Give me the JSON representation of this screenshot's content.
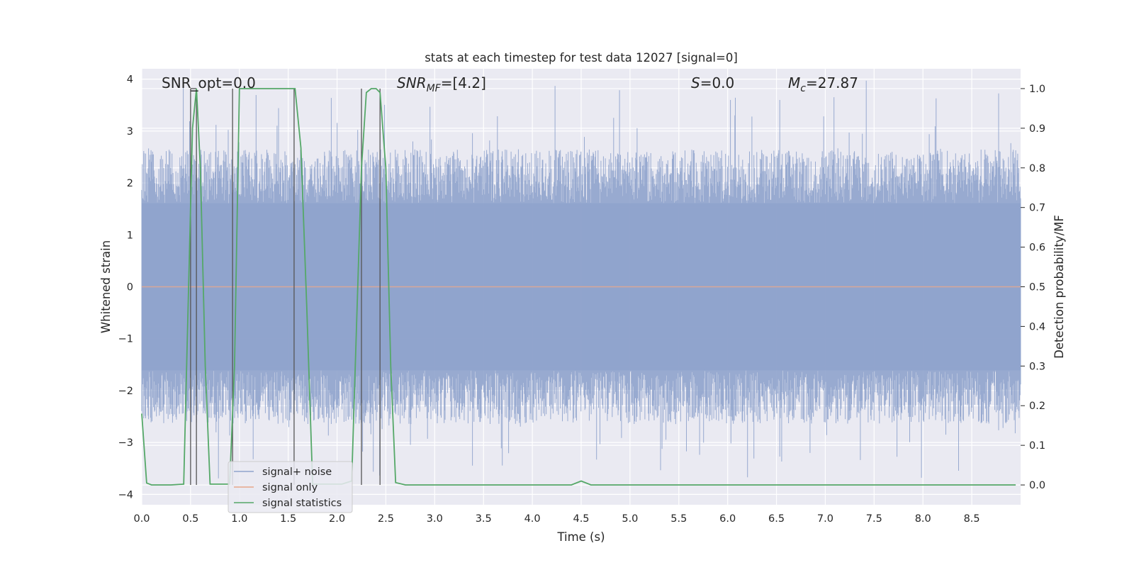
{
  "chart_data": {
    "type": "line",
    "title": "stats at each timestep for test data 12027 [signal=0]",
    "xlabel": "Time (s)",
    "ylabel": "Whitened strain",
    "y2label": "Detection probability/MF",
    "xlim": [
      0.0,
      9.0
    ],
    "ylim": [
      -4.2,
      4.2
    ],
    "y2lim": [
      -0.05,
      1.05
    ],
    "x_ticks": [
      0.0,
      0.5,
      1.0,
      1.5,
      2.0,
      2.5,
      3.0,
      3.5,
      4.0,
      4.5,
      5.0,
      5.5,
      6.0,
      6.5,
      7.0,
      7.5,
      8.0,
      8.5
    ],
    "x_tick_labels": [
      "0.0",
      "0.5",
      "1.0",
      "1.5",
      "2.0",
      "2.5",
      "3.0",
      "3.5",
      "4.0",
      "4.5",
      "5.0",
      "5.5",
      "6.0",
      "6.5",
      "7.0",
      "7.5",
      "8.0",
      "8.5"
    ],
    "y_ticks": [
      -4,
      -3,
      -2,
      -1,
      0,
      1,
      2,
      3,
      4
    ],
    "y_tick_labels": [
      "−4",
      "−3",
      "−2",
      "−1",
      "0",
      "1",
      "2",
      "3",
      "4"
    ],
    "y2_ticks": [
      0.0,
      0.1,
      0.2,
      0.3,
      0.4,
      0.5,
      0.6,
      0.7,
      0.8,
      0.9,
      1.0
    ],
    "y2_tick_labels": [
      "0.0",
      "0.1",
      "0.2",
      "0.3",
      "0.4",
      "0.5",
      "0.6",
      "0.7",
      "0.8",
      "0.9",
      "1.0"
    ],
    "grid": true,
    "legend": {
      "placement": "lower-left",
      "entries": [
        {
          "label": "signal+ noise",
          "color": "#8fa3cc"
        },
        {
          "label": "signal only",
          "color": "#e8a88a"
        },
        {
          "label": "signal statistics",
          "color": "#55a868"
        }
      ]
    },
    "annotations": {
      "snr_opt": "SNR_opt=0.0",
      "snr_mf_main": "SNR",
      "snr_mf_sub": "MF",
      "snr_mf_value": "=[4.2]",
      "s_main": "S",
      "s_value": "=0.0",
      "mc_main": "M",
      "mc_sub": "c",
      "mc_value": "=27.87"
    },
    "series": [
      {
        "name": "signal+ noise",
        "axis": "left",
        "style": "dense noise, envelope approx",
        "x_range": [
          0.0,
          9.0
        ],
        "typical_peak": 2.3,
        "max_peak": 4.0,
        "min_trough": -3.7
      },
      {
        "name": "signal only",
        "axis": "left",
        "x": [
          0.0,
          9.0
        ],
        "y": [
          0.0,
          0.0
        ]
      },
      {
        "name": "signal statistics",
        "axis": "right",
        "x": [
          0.0,
          0.05,
          0.1,
          0.2,
          0.3,
          0.43,
          0.48,
          0.52,
          0.56,
          0.6,
          0.65,
          0.7,
          0.8,
          0.9,
          0.95,
          1.0,
          1.05,
          1.1,
          1.2,
          1.3,
          1.4,
          1.5,
          1.57,
          1.63,
          1.69,
          1.75,
          1.85,
          1.95,
          2.05,
          2.15,
          2.25,
          2.3,
          2.35,
          2.4,
          2.44,
          2.5,
          2.55,
          2.6,
          2.7,
          2.9,
          3.5,
          4.0,
          4.4,
          4.5,
          4.6,
          4.7,
          5.0,
          6.0,
          7.0,
          8.0,
          8.95
        ],
        "y": [
          0.18,
          0.005,
          0.0,
          0.0,
          0.0,
          0.002,
          0.5,
          0.9,
          1.0,
          0.8,
          0.3,
          0.002,
          0.002,
          0.002,
          0.3,
          1.0,
          1.0,
          1.0,
          1.0,
          1.0,
          1.0,
          1.0,
          1.0,
          0.85,
          0.45,
          0.002,
          0.002,
          0.002,
          0.002,
          0.01,
          0.8,
          0.99,
          1.0,
          1.0,
          0.99,
          0.8,
          0.3,
          0.006,
          0.0,
          0.0,
          0.0,
          0.0,
          0.0,
          0.01,
          0.0,
          0.0,
          0.0,
          0.0,
          0.0,
          0.0,
          0.0
        ]
      }
    ],
    "markers": [
      {
        "x": 0.5,
        "color": "#555555"
      },
      {
        "x": 0.56,
        "color": "#555555"
      },
      {
        "x": 0.93,
        "color": "#555555"
      },
      {
        "x": 1.56,
        "color": "#555555"
      },
      {
        "x": 2.25,
        "color": "#555555"
      },
      {
        "x": 2.44,
        "color": "#555555"
      }
    ],
    "colors": {
      "plot_background": "#eaeaf2",
      "grid": "#ffffff",
      "noise": "#8fa3cc",
      "signal_only": "#e8a88a",
      "statistics": "#55a868",
      "marker": "#555555"
    }
  }
}
